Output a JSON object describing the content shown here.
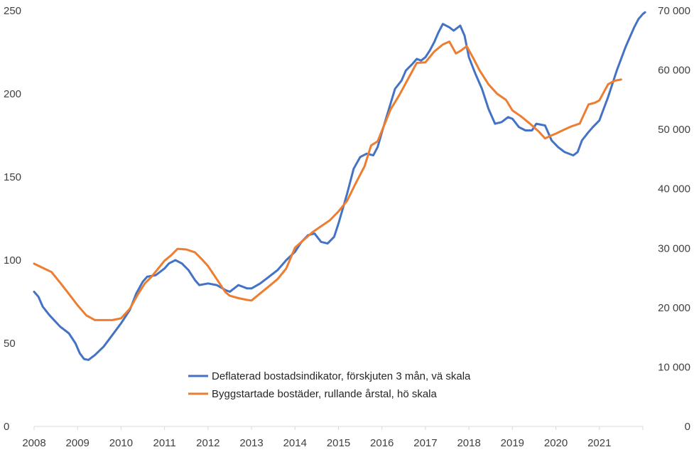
{
  "chart_data": {
    "type": "line",
    "title": "",
    "xlabel": "",
    "ylabel": "",
    "x_ticks": [
      "2008",
      "2009",
      "2010",
      "2011",
      "2012",
      "2013",
      "2014",
      "2015",
      "2016",
      "2017",
      "2018",
      "2019",
      "2020",
      "2021"
    ],
    "y_left": {
      "lim": [
        0,
        250
      ],
      "ticks": [
        "0",
        "50",
        "100",
        "150",
        "200",
        "250"
      ]
    },
    "y_right": {
      "lim": [
        0,
        70000
      ],
      "ticks": [
        "0",
        "10 000",
        "20 000",
        "30 000",
        "40 000",
        "50 000",
        "60 000",
        "70 000"
      ]
    },
    "grid": false,
    "legend_position": "bottom-center",
    "colors": {
      "blue": "#4472C4",
      "orange": "#ED7D31",
      "axis": "#D9D9D9",
      "text": "#404040"
    },
    "series": [
      {
        "name": "Deflaterad bostadsindikator, förskjuten 3 mån, vä skala",
        "axis": "left",
        "color": "#4472C4",
        "points": [
          [
            2008.0,
            81
          ],
          [
            2008.1,
            78
          ],
          [
            2008.2,
            72
          ],
          [
            2008.35,
            67
          ],
          [
            2008.6,
            60
          ],
          [
            2008.8,
            56
          ],
          [
            2008.95,
            50
          ],
          [
            2009.05,
            44
          ],
          [
            2009.15,
            40.5
          ],
          [
            2009.25,
            40
          ],
          [
            2009.4,
            43
          ],
          [
            2009.6,
            48
          ],
          [
            2009.8,
            55
          ],
          [
            2010.0,
            62
          ],
          [
            2010.2,
            70
          ],
          [
            2010.35,
            80
          ],
          [
            2010.5,
            87
          ],
          [
            2010.6,
            90
          ],
          [
            2010.8,
            91
          ],
          [
            2011.0,
            95
          ],
          [
            2011.1,
            98
          ],
          [
            2011.25,
            100
          ],
          [
            2011.4,
            98
          ],
          [
            2011.55,
            94
          ],
          [
            2011.7,
            88
          ],
          [
            2011.8,
            85
          ],
          [
            2012.0,
            86
          ],
          [
            2012.2,
            85
          ],
          [
            2012.4,
            82
          ],
          [
            2012.5,
            81
          ],
          [
            2012.6,
            83
          ],
          [
            2012.7,
            85
          ],
          [
            2012.9,
            83
          ],
          [
            2013.0,
            83
          ],
          [
            2013.2,
            86
          ],
          [
            2013.4,
            90
          ],
          [
            2013.6,
            94
          ],
          [
            2013.8,
            100
          ],
          [
            2014.0,
            105
          ],
          [
            2014.15,
            111
          ],
          [
            2014.3,
            115
          ],
          [
            2014.45,
            116
          ],
          [
            2014.6,
            111
          ],
          [
            2014.75,
            110
          ],
          [
            2014.9,
            114
          ],
          [
            2015.0,
            122
          ],
          [
            2015.2,
            140
          ],
          [
            2015.35,
            155
          ],
          [
            2015.5,
            162
          ],
          [
            2015.65,
            164
          ],
          [
            2015.8,
            163
          ],
          [
            2015.9,
            168
          ],
          [
            2016.0,
            177
          ],
          [
            2016.15,
            190
          ],
          [
            2016.3,
            203
          ],
          [
            2016.45,
            208
          ],
          [
            2016.55,
            214
          ],
          [
            2016.7,
            218
          ],
          [
            2016.8,
            221
          ],
          [
            2016.9,
            220
          ],
          [
            2017.0,
            222
          ],
          [
            2017.1,
            226
          ],
          [
            2017.2,
            231
          ],
          [
            2017.3,
            237
          ],
          [
            2017.4,
            242
          ],
          [
            2017.55,
            240
          ],
          [
            2017.65,
            238
          ],
          [
            2017.8,
            241
          ],
          [
            2017.9,
            235
          ],
          [
            2018.0,
            222
          ],
          [
            2018.15,
            212
          ],
          [
            2018.3,
            203
          ],
          [
            2018.45,
            191
          ],
          [
            2018.6,
            182
          ],
          [
            2018.75,
            183
          ],
          [
            2018.9,
            186
          ],
          [
            2019.0,
            185
          ],
          [
            2019.15,
            180
          ],
          [
            2019.3,
            178
          ],
          [
            2019.45,
            178
          ],
          [
            2019.55,
            182
          ],
          [
            2019.75,
            181
          ],
          [
            2019.9,
            172
          ],
          [
            2020.05,
            168
          ],
          [
            2020.2,
            165
          ],
          [
            2020.4,
            163
          ],
          [
            2020.5,
            165
          ],
          [
            2020.6,
            172
          ],
          [
            2020.75,
            177
          ],
          [
            2020.85,
            180
          ],
          [
            2021.0,
            184
          ],
          [
            2021.2,
            198
          ],
          [
            2021.4,
            214
          ],
          [
            2021.6,
            228
          ],
          [
            2021.8,
            240
          ],
          [
            2021.9,
            245
          ],
          [
            2022.0,
            248
          ],
          [
            2022.05,
            249
          ]
        ]
      },
      {
        "name": "Byggstartade bostäder, rullande årstal, hö skala",
        "axis": "right",
        "color": "#ED7D31",
        "points": [
          [
            2008.0,
            27400
          ],
          [
            2008.2,
            26700
          ],
          [
            2008.4,
            26000
          ],
          [
            2008.6,
            24200
          ],
          [
            2008.8,
            22300
          ],
          [
            2009.0,
            20400
          ],
          [
            2009.2,
            18700
          ],
          [
            2009.4,
            17900
          ],
          [
            2009.6,
            17900
          ],
          [
            2009.8,
            17900
          ],
          [
            2010.0,
            18200
          ],
          [
            2010.2,
            19800
          ],
          [
            2010.4,
            22400
          ],
          [
            2010.55,
            24100
          ],
          [
            2010.7,
            25200
          ],
          [
            2010.9,
            27000
          ],
          [
            2011.0,
            27900
          ],
          [
            2011.15,
            28800
          ],
          [
            2011.3,
            29900
          ],
          [
            2011.5,
            29800
          ],
          [
            2011.7,
            29300
          ],
          [
            2011.85,
            28200
          ],
          [
            2012.0,
            27000
          ],
          [
            2012.2,
            24800
          ],
          [
            2012.4,
            22600
          ],
          [
            2012.5,
            22000
          ],
          [
            2012.7,
            21600
          ],
          [
            2012.9,
            21300
          ],
          [
            2013.0,
            21200
          ],
          [
            2013.2,
            22400
          ],
          [
            2013.4,
            23600
          ],
          [
            2013.6,
            24800
          ],
          [
            2013.8,
            26600
          ],
          [
            2014.0,
            30100
          ],
          [
            2014.2,
            31400
          ],
          [
            2014.4,
            32700
          ],
          [
            2014.6,
            33700
          ],
          [
            2014.8,
            34700
          ],
          [
            2015.0,
            36200
          ],
          [
            2015.2,
            38000
          ],
          [
            2015.4,
            41000
          ],
          [
            2015.6,
            43800
          ],
          [
            2015.75,
            47300
          ],
          [
            2015.9,
            48000
          ],
          [
            2016.0,
            49800
          ],
          [
            2016.2,
            53400
          ],
          [
            2016.4,
            55800
          ],
          [
            2016.6,
            58500
          ],
          [
            2016.8,
            61200
          ],
          [
            2017.0,
            61300
          ],
          [
            2017.2,
            63100
          ],
          [
            2017.4,
            64300
          ],
          [
            2017.55,
            64800
          ],
          [
            2017.7,
            62800
          ],
          [
            2017.8,
            63200
          ],
          [
            2017.95,
            64000
          ],
          [
            2018.1,
            62000
          ],
          [
            2018.25,
            59900
          ],
          [
            2018.45,
            57600
          ],
          [
            2018.65,
            56000
          ],
          [
            2018.85,
            55000
          ],
          [
            2019.0,
            53200
          ],
          [
            2019.2,
            52200
          ],
          [
            2019.4,
            51000
          ],
          [
            2019.6,
            49700
          ],
          [
            2019.75,
            48500
          ],
          [
            2019.9,
            49000
          ],
          [
            2020.0,
            49300
          ],
          [
            2020.2,
            50000
          ],
          [
            2020.35,
            50500
          ],
          [
            2020.55,
            51000
          ],
          [
            2020.75,
            54200
          ],
          [
            2020.9,
            54500
          ],
          [
            2021.0,
            54900
          ],
          [
            2021.2,
            57600
          ],
          [
            2021.35,
            58200
          ],
          [
            2021.5,
            58400
          ]
        ]
      }
    ]
  }
}
